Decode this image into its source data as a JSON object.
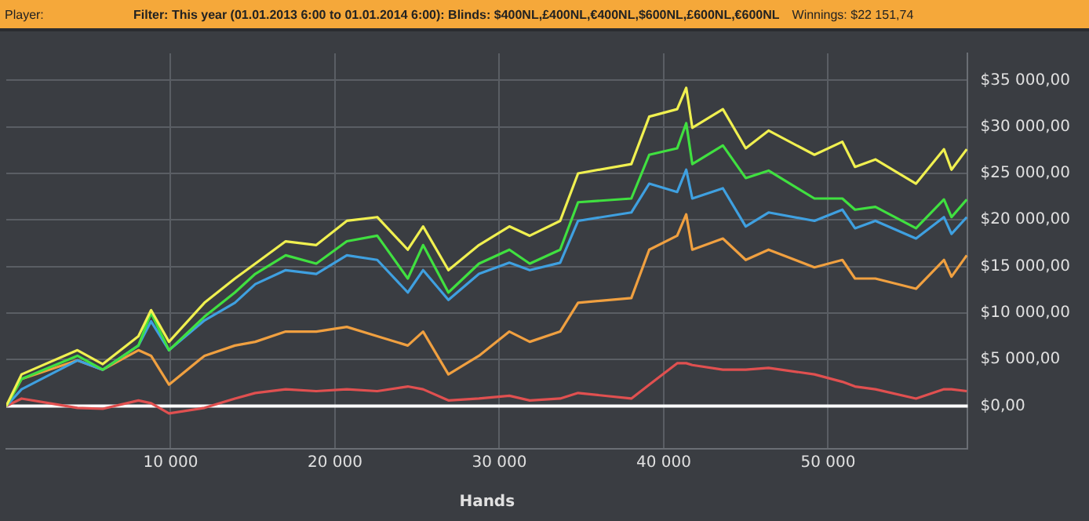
{
  "chart_data": {
    "type": "line",
    "title": "Player:",
    "subtitle": "Filter:  This year (01.01.2013 6:00 to 01.01.2014 6:00): Blinds: $400NL,£400NL,€400NL,$600NL,£600NL,€600NL",
    "annotations": [
      "Winnings:  $22 151,74"
    ],
    "xlabel": "Hands",
    "x": [
      0,
      930,
      4330,
      5870,
      8040,
      8810,
      9900,
      12060,
      13910,
      15150,
      17000,
      18860,
      20720,
      22570,
      24430,
      25360,
      26900,
      28760,
      30610,
      31850,
      33700,
      34790,
      38030,
      39120,
      40820,
      41370,
      41740,
      43600,
      44990,
      46380,
      49170,
      50870,
      51640,
      52880,
      55350,
      57050,
      57510,
      58440
    ],
    "series": [
      {
        "color": "#f0f050",
        "values": [
          0,
          3400,
          6000,
          4500,
          7500,
          10300,
          6900,
          11100,
          13700,
          15300,
          17700,
          17300,
          19900,
          20300,
          16800,
          19300,
          14600,
          17300,
          19300,
          18300,
          19900,
          25000,
          26000,
          31100,
          31900,
          34200,
          29900,
          31900,
          27700,
          29600,
          27000,
          28400,
          25700,
          26500,
          23900,
          27600,
          25400,
          27600
        ]
      },
      {
        "color": "#40e040",
        "values": [
          0,
          2900,
          5400,
          3900,
          6500,
          10000,
          6000,
          9600,
          12200,
          14200,
          16200,
          15300,
          17700,
          18300,
          13700,
          17300,
          12200,
          15300,
          16800,
          15300,
          16800,
          21900,
          22300,
          27000,
          27700,
          30400,
          26000,
          28000,
          24500,
          25300,
          22300,
          22300,
          21100,
          21400,
          19100,
          22200,
          20300,
          22200
        ]
      },
      {
        "color": "#3fa0e0",
        "values": [
          0,
          1800,
          4900,
          3900,
          6500,
          9100,
          6000,
          9200,
          11100,
          13100,
          14600,
          14200,
          16200,
          15700,
          12200,
          14600,
          11400,
          14200,
          15400,
          14600,
          15400,
          19900,
          20800,
          23900,
          23000,
          25400,
          22300,
          23400,
          19300,
          20800,
          19900,
          21100,
          19100,
          19900,
          18000,
          20300,
          18500,
          20300
        ]
      },
      {
        "color": "#f0a040",
        "values": [
          0,
          2900,
          4900,
          3900,
          6000,
          5400,
          2300,
          5400,
          6500,
          6900,
          8000,
          8000,
          8500,
          7500,
          6500,
          8000,
          3400,
          5400,
          8000,
          6900,
          8000,
          11100,
          11600,
          16800,
          18300,
          20600,
          16800,
          18000,
          15700,
          16800,
          14900,
          15700,
          13700,
          13700,
          12600,
          15700,
          13900,
          16200
        ]
      },
      {
        "color": "#e05050",
        "values": [
          0,
          800,
          -200,
          -300,
          600,
          300,
          -800,
          -200,
          800,
          1400,
          1800,
          1600,
          1800,
          1600,
          2100,
          1800,
          600,
          800,
          1100,
          600,
          800,
          1400,
          800,
          2300,
          4600,
          4600,
          4400,
          3900,
          3900,
          4100,
          3400,
          2600,
          2100,
          1800,
          800,
          1800,
          1800,
          1600
        ]
      }
    ],
    "xlim": [
      0,
      58500
    ],
    "ylim": [
      -4600,
      37900
    ],
    "xticks": [
      {
        "value": 10000,
        "label": "10 000"
      },
      {
        "value": 20000,
        "label": "20 000"
      },
      {
        "value": 30000,
        "label": "30 000"
      },
      {
        "value": 40000,
        "label": "40 000"
      },
      {
        "value": 50000,
        "label": "50 000"
      }
    ],
    "yticks": [
      {
        "value": 0,
        "label": "$0,00"
      },
      {
        "value": 5000,
        "label": "$5 000,00"
      },
      {
        "value": 10000,
        "label": "$10 000,00"
      },
      {
        "value": 15000,
        "label": "$15 000,00"
      },
      {
        "value": 20000,
        "label": "$20 000,00"
      },
      {
        "value": 25000,
        "label": "$25 000,00"
      },
      {
        "value": 30000,
        "label": "$30 000,00"
      },
      {
        "value": 35000,
        "label": "$35 000,00"
      }
    ],
    "ref_lines": [
      {
        "axis": "y",
        "value": 0,
        "color": "#ffffff"
      }
    ],
    "grid": true,
    "marker": "none",
    "line_style": "solid",
    "legend": false
  }
}
